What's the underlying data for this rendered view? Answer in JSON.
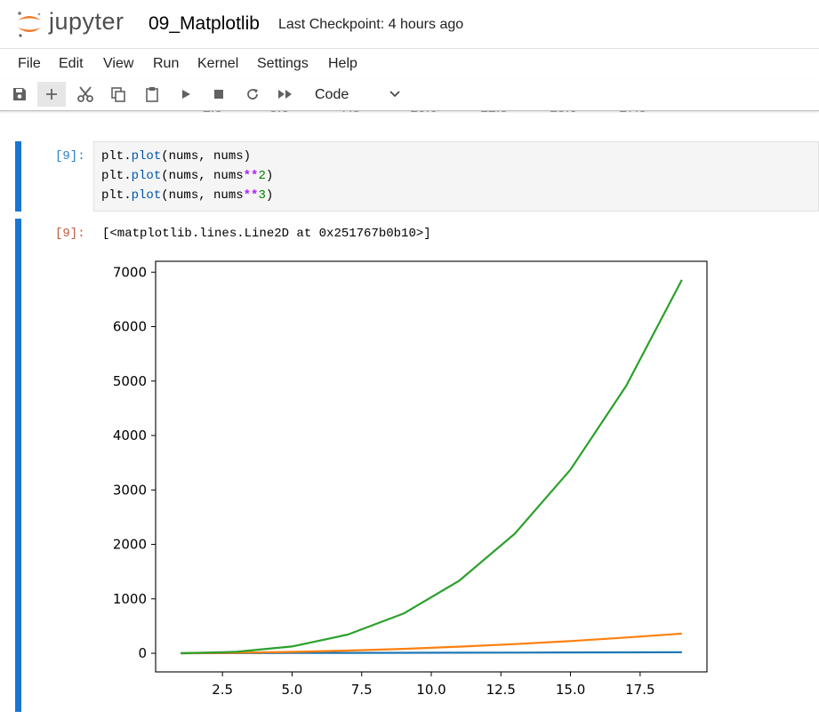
{
  "header": {
    "logo_text": "jupyter",
    "notebook_name": "09_Matplotlib",
    "checkpoint": "Last Checkpoint: 4 hours ago"
  },
  "menu": [
    "File",
    "Edit",
    "View",
    "Run",
    "Kernel",
    "Settings",
    "Help"
  ],
  "toolbar": {
    "buttons": [
      "save-icon",
      "add-cell-icon",
      "cut-icon",
      "copy-icon",
      "paste-icon",
      "run-icon",
      "stop-icon",
      "restart-icon",
      "run-all-icon"
    ],
    "cell_type": "Code"
  },
  "cell": {
    "input_prompt": "[9]:",
    "code": [
      {
        "obj": "plt.",
        "fn": "plot",
        "args_pre": "(nums, nums",
        "op": "",
        "num": "",
        "close": ")"
      },
      {
        "obj": "plt.",
        "fn": "plot",
        "args_pre": "(nums, nums",
        "op": "**",
        "num": "2",
        "close": ")"
      },
      {
        "obj": "plt.",
        "fn": "plot",
        "args_pre": "(nums, nums",
        "op": "**",
        "num": "3",
        "close": ")"
      }
    ],
    "output_prompt": "[9]:",
    "output_text": "[<matplotlib.lines.Line2D at 0x251767b0b10>]"
  },
  "colors": {
    "accent": "#1976d2",
    "series1": "#1f77b4",
    "series2": "#ff7f0e",
    "series3": "#2ca02c"
  },
  "chart_data": {
    "type": "line",
    "x": [
      1,
      3,
      5,
      7,
      9,
      11,
      13,
      15,
      17,
      19
    ],
    "series": [
      {
        "values": [
          1,
          3,
          5,
          7,
          9,
          11,
          13,
          15,
          17,
          19
        ],
        "color": "#1f77b4"
      },
      {
        "values": [
          1,
          9,
          25,
          49,
          81,
          121,
          169,
          225,
          289,
          361
        ],
        "color": "#ff7f0e"
      },
      {
        "values": [
          1,
          27,
          125,
          343,
          729,
          1331,
          2197,
          3375,
          4913,
          6859
        ],
        "color": "#2ca02c"
      }
    ],
    "xticks": [
      2.5,
      5.0,
      7.5,
      10.0,
      12.5,
      15.0,
      17.5
    ],
    "xtick_labels": [
      "2.5",
      "5.0",
      "7.5",
      "10.0",
      "12.5",
      "15.0",
      "17.5"
    ],
    "yticks": [
      0,
      1000,
      2000,
      3000,
      4000,
      5000,
      6000,
      7000
    ],
    "ytick_labels": [
      "0",
      "1000",
      "2000",
      "3000",
      "4000",
      "5000",
      "6000",
      "7000"
    ],
    "xlim": [
      0.1,
      19.9
    ],
    "ylim": [
      -342,
      7200
    ],
    "grid": false,
    "title": "",
    "xlabel": "",
    "ylabel": ""
  }
}
